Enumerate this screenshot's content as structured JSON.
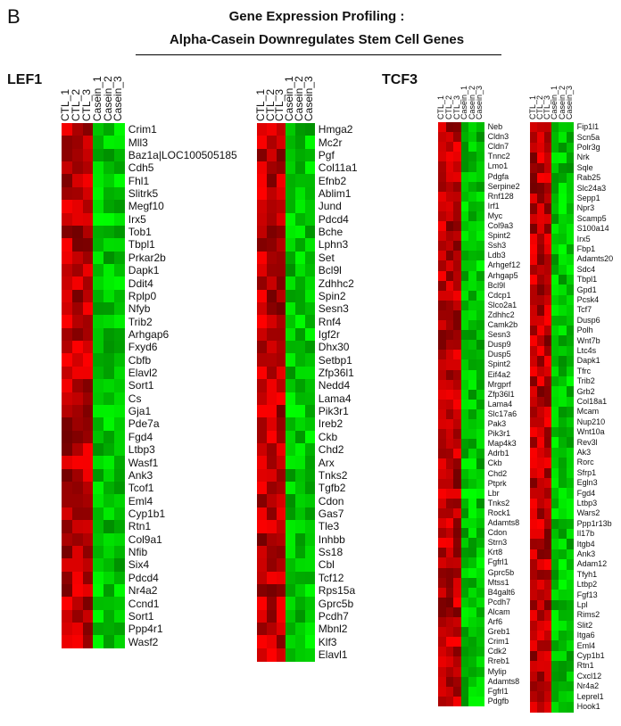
{
  "panel_label": "B",
  "title_line1": "Gene Expression Profiling :",
  "title_line2": "Alpha-Casein Downregulates Stem Cell Genes",
  "columns": [
    "CTL_1",
    "CTL_2",
    "CTL_3",
    "Casein_1",
    "Casein_2",
    "Casein_3"
  ],
  "colors": {
    "high": "#ff0000",
    "low": "#00ff00",
    "mid": "#000000"
  },
  "groups": [
    {
      "label": "LEF1",
      "heatmaps": [
        {
          "genes": [
            "Crim1",
            "Mll3",
            "Baz1a|LOC100505185",
            "Cdh5",
            "Fhl1",
            "Slitrk5",
            "Megf10",
            "Irx5",
            "Tob1",
            "Tbpl1",
            "Prkar2b",
            "Dapk1",
            "Ddit4",
            "Rplp0",
            "Nfyb",
            "Trib2",
            "Arhgap6",
            "Fxyd6",
            "Cbfb",
            "Elavl2",
            "Sort1",
            "Cs",
            "Gja1",
            "Pde7a",
            "Fgd4",
            "Ltbp3",
            "Wasf1",
            "Ank3",
            "Tcof1",
            "Eml4",
            "Cyp1b1",
            "Rtn1",
            "Col9a1",
            "Nfib",
            "Six4",
            "Pdcd4",
            "Nr4a2",
            "Ccnd1",
            "Sort1",
            "Ppp4r1",
            "Wasf2"
          ]
        },
        {
          "genes": [
            "Hmga2",
            "Mc2r",
            "Pgf",
            "Col11a1",
            "Efnb2",
            "Ablim1",
            "Jund",
            "Pdcd4",
            "Bche",
            "Lphn3",
            "Set",
            "Bcl9l",
            "Zdhhc2",
            "Spin2",
            "Sesn3",
            "Rnf4",
            "Igf2r",
            "Dhx30",
            "Setbp1",
            "Zfp36l1",
            "Nedd4",
            "Lama4",
            "Pik3r1",
            "Ireb2",
            "Ckb",
            "Chd2",
            "Arx",
            "Tnks2",
            "Tgfb2",
            "Cdon",
            "Gas7",
            "Tle3",
            "Inhbb",
            "Ss18",
            "Cbl",
            "Tcf12",
            "Rps15a",
            "Gprc5b",
            "Pcdh7",
            "Mbnl2",
            "Klf3",
            "Elavl1"
          ]
        }
      ]
    },
    {
      "label": "TCF3",
      "heatmaps": [
        {
          "genes": [
            "Neb",
            "Cldn3",
            "Cldn7",
            "Tnnc2",
            "Lmo1",
            "Pdgfa",
            "Serpine2",
            "Rnf128",
            "Irf1",
            "Myc",
            "Col9a3",
            "Spint2",
            "Ssh3",
            "Ldb3",
            "Arhgef12",
            "Arhgap5",
            "Bcl9l",
            "Cdcp1",
            "Slco2a1",
            "Zdhhc2",
            "Camk2b",
            "Sesn3",
            "Dusp9",
            "Dusp5",
            "Spint2",
            "Eif4a2",
            "Mrgprf",
            "Zfp36l1",
            "Lama4",
            "Slc17a6",
            "Pak3",
            "Pik3r1",
            "Map4k3",
            "Adrb1",
            "Ckb",
            "Chd2",
            "Ptprk",
            "Lbr",
            "Tnks2",
            "Rock1",
            "Adamts8",
            "Cdon",
            "Strn3",
            "Krt8",
            "Fgfrl1",
            "Gprc5b",
            "Mtss1",
            "B4galt6",
            "Pcdh7",
            "Alcam",
            "Arf6",
            "Greb1",
            "Crim1",
            "Cdk2",
            "Rreb1",
            "Mylip",
            "Adamts8",
            "Fgfrl1",
            "Pdgfb"
          ]
        },
        {
          "genes": [
            "Fip1l1",
            "Scn5a",
            "Polr3g",
            "Nrk",
            "Sqle",
            "Rab25",
            "Slc24a3",
            "Sepp1",
            "Npr3",
            "Scamp5",
            "S100a14",
            "Irx5",
            "Fbp1",
            "Adamts20",
            "Sdc4",
            "Tbpl1",
            "Gpd1",
            "Pcsk4",
            "Tcf7",
            "Dusp6",
            "Polh",
            "Wnt7b",
            "Ltc4s",
            "Dapk1",
            "Tfrc",
            "Trib2",
            "Grb2",
            "Col18a1",
            "Mcam",
            "Nup210",
            "Wnt10a",
            "Rev3l",
            "Ak3",
            "Rorc",
            "Sfrp1",
            "Egln3",
            "Fgd4",
            "Ltbp3",
            "Wars2",
            "Ppp1r13b",
            "Il17b",
            "Itgb4",
            "Ank3",
            "Adam12",
            "Tfyh1",
            "Ltbp2",
            "Fgf13",
            "Lpl",
            "Rims2",
            "Slit2",
            "Itga6",
            "Eml4",
            "Cyp1b1",
            "Rtn1",
            "Cxcl12",
            "Nr4a2",
            "Leprel1",
            "Hook1"
          ]
        }
      ]
    }
  ]
}
